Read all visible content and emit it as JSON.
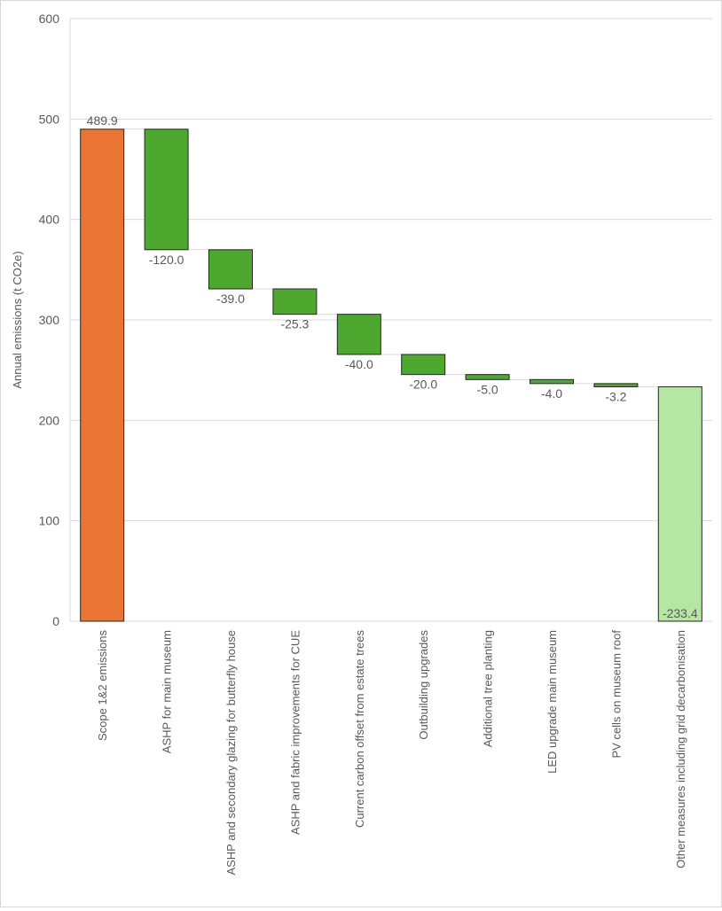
{
  "chart_data": {
    "type": "waterfall",
    "title": "",
    "ylabel": "Annual emissions (t CO2e)",
    "xlabel": "",
    "ylim": [
      0,
      600
    ],
    "yticks": [
      0,
      100,
      200,
      300,
      400,
      500,
      600
    ],
    "grid": true,
    "legend": "none",
    "categories": [
      "Scope 1&2 emissions",
      "ASHP for main museum",
      "ASHP and secondary glazing for butterfly house",
      "ASHP and fabric improvements for CUE",
      "Current carbon offset from estate trees",
      "Outbuilding upgrades",
      "Additional tree planting",
      "LED upgrade main museum",
      "PV cells on museum roof",
      "Other measures including grid decarbonisation"
    ],
    "values": [
      489.9,
      -120.0,
      -39.0,
      -25.3,
      -40.0,
      -20.0,
      -5.0,
      -4.0,
      -3.2,
      -233.4
    ],
    "labels": [
      "489.9",
      "-120.0",
      "-39.0",
      "-25.3",
      "-40.0",
      "-20.0",
      "-5.0",
      "-4.0",
      "-3.2",
      "-233.4"
    ],
    "colors": {
      "start": "#ea7433",
      "decrease": "#4ea72e",
      "final": "#b5e6a2",
      "outline": "#262626",
      "grid": "#d9d9d9"
    }
  }
}
